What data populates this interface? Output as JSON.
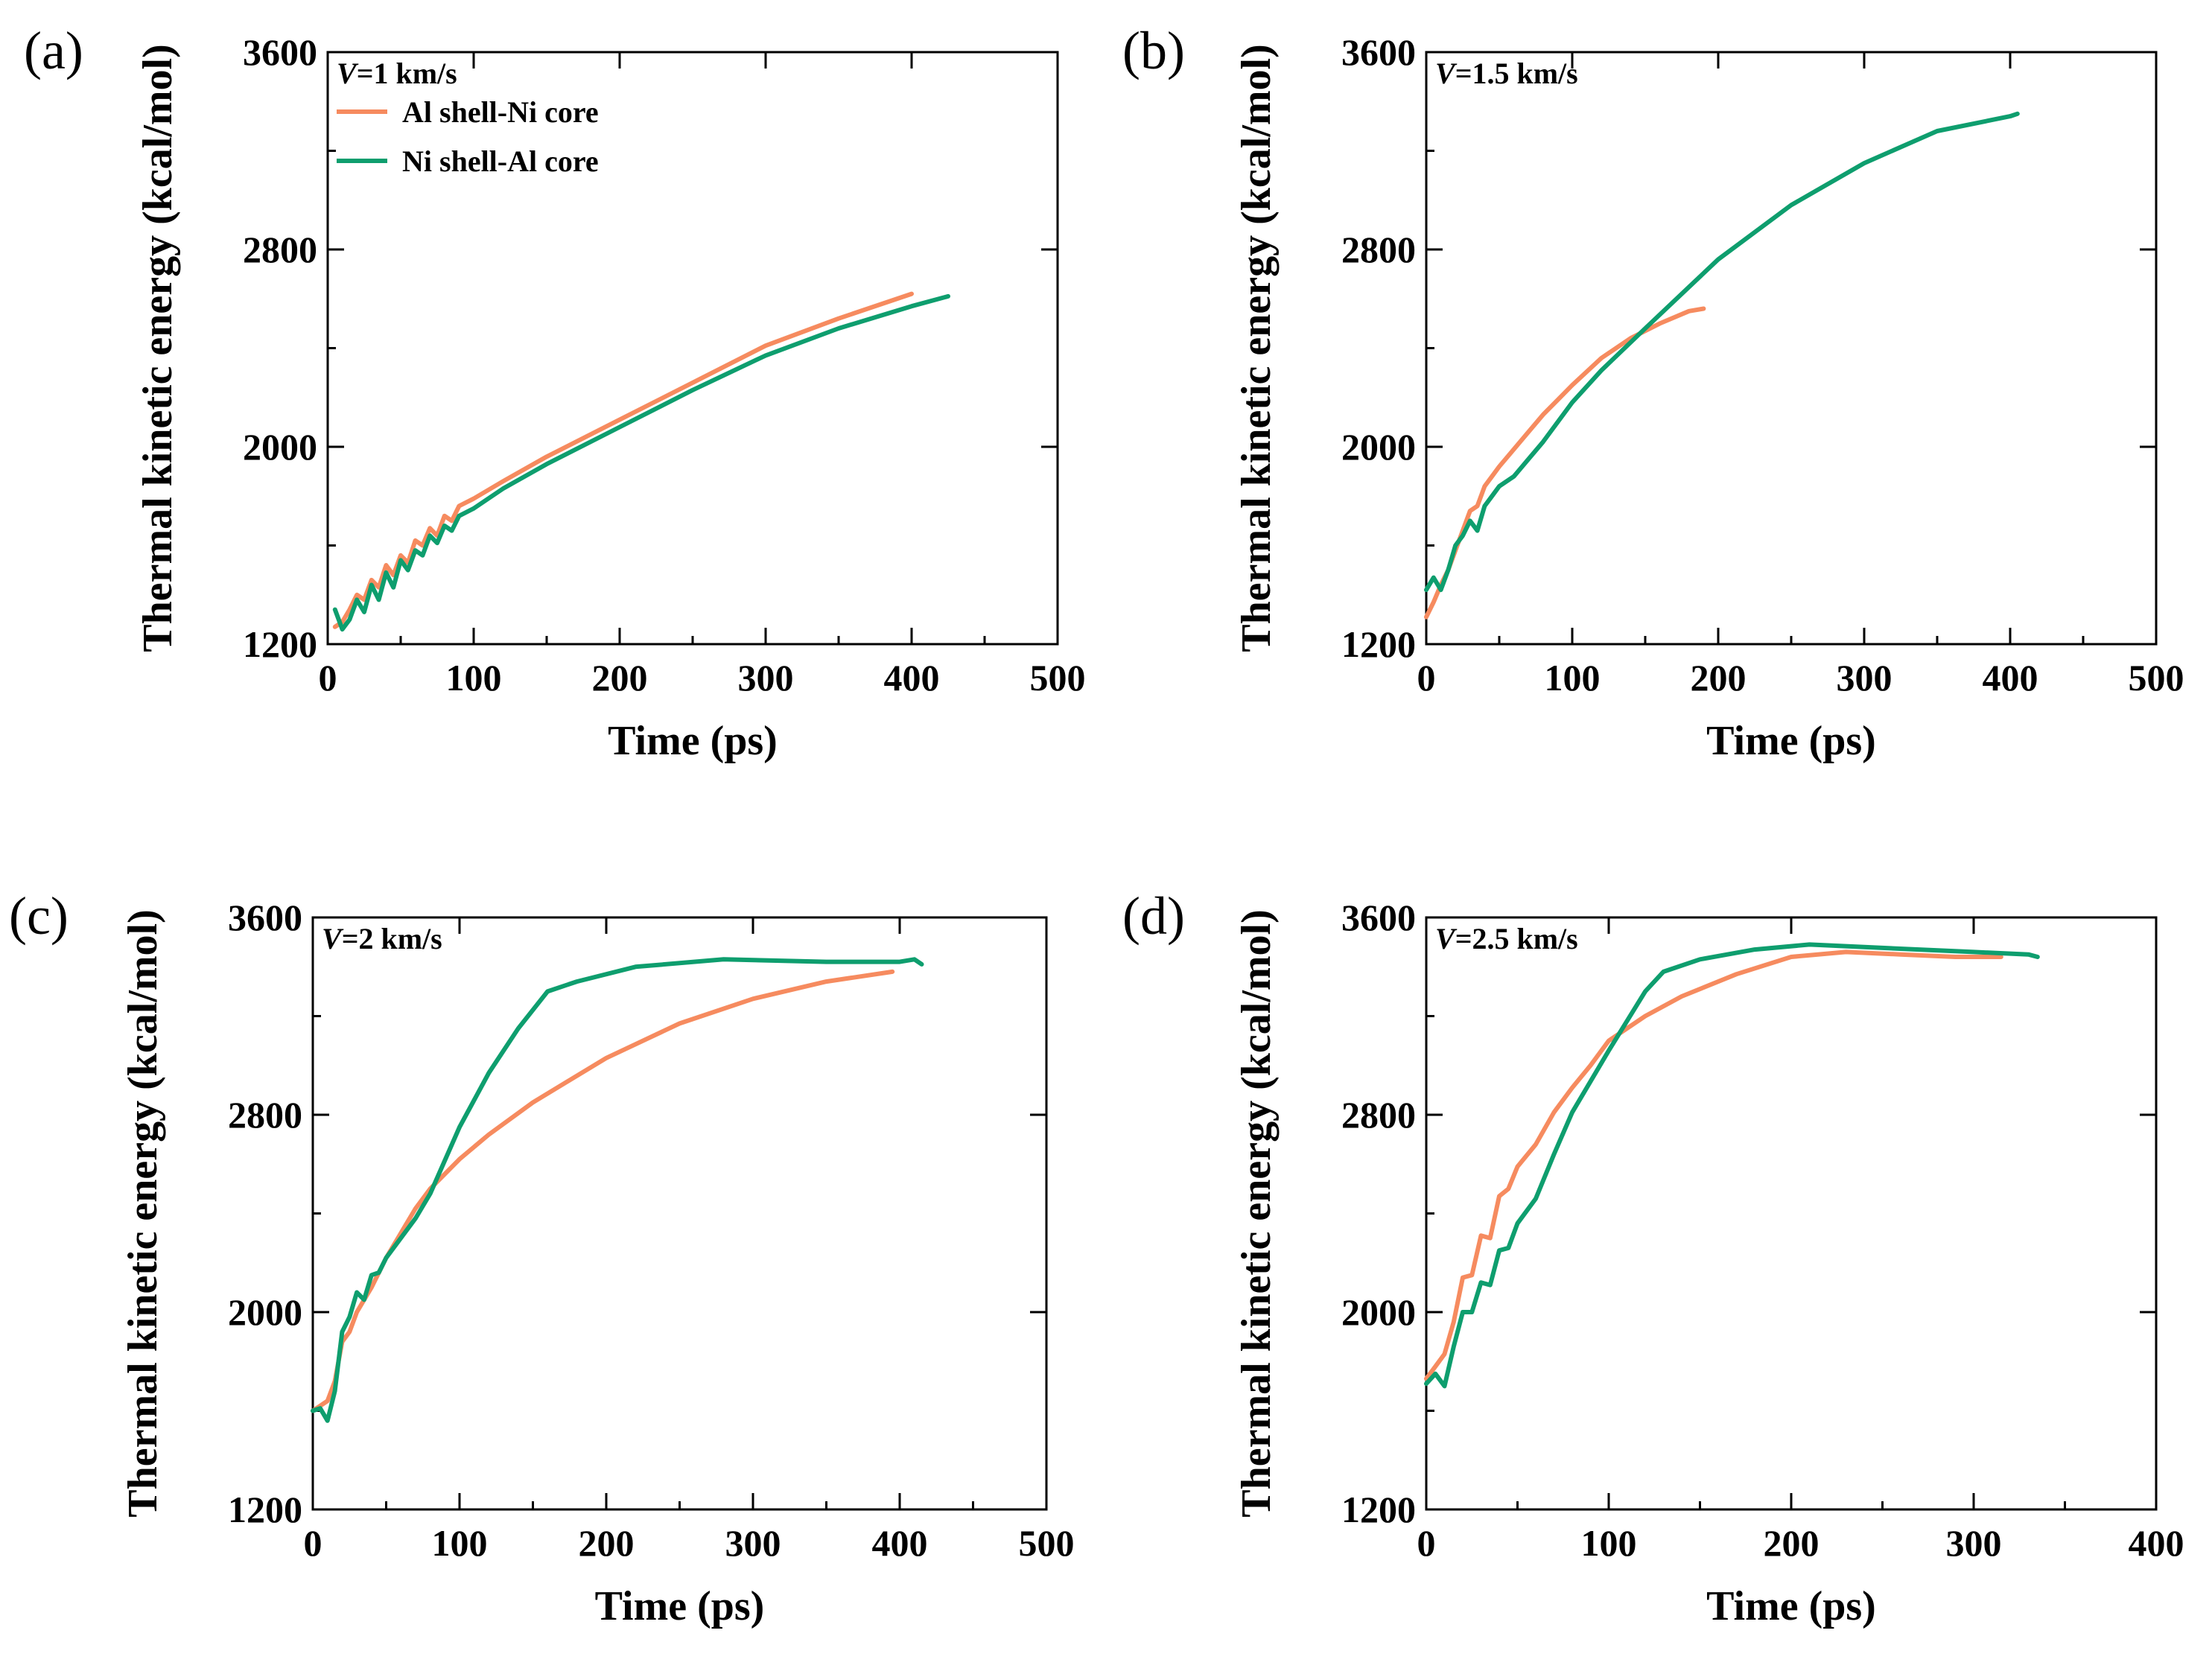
{
  "colors": {
    "al_shell": "#F68B5F",
    "ni_shell": "#0E9E6E"
  },
  "legend": [
    "Al shell-Ni core",
    "Ni shell-Al core"
  ],
  "chart_data": [
    {
      "panel_label": "(a)",
      "type": "line",
      "annotation_italic": "V",
      "annotation_rest": "=1 km/s",
      "xlabel": "Time (ps)",
      "ylabel": "Thermal kinetic energy (kcal/mol)",
      "xlim": [
        0,
        500
      ],
      "ylim": [
        1200,
        3600
      ],
      "xticks": [
        0,
        100,
        200,
        300,
        400,
        500
      ],
      "yticks": [
        1200,
        2000,
        2800,
        3600
      ],
      "show_legend": true,
      "series": [
        {
          "name": "Al shell-Ni core",
          "color_key": "al_shell",
          "x": [
            5,
            10,
            15,
            20,
            25,
            30,
            35,
            40,
            45,
            50,
            55,
            60,
            65,
            70,
            75,
            80,
            85,
            90,
            100,
            120,
            150,
            200,
            250,
            300,
            350,
            400
          ],
          "y": [
            1270,
            1290,
            1340,
            1400,
            1380,
            1460,
            1430,
            1520,
            1480,
            1560,
            1530,
            1620,
            1600,
            1670,
            1640,
            1720,
            1700,
            1760,
            1790,
            1860,
            1960,
            2110,
            2260,
            2410,
            2520,
            2620
          ]
        },
        {
          "name": "Ni shell-Al core",
          "color_key": "ni_shell",
          "x": [
            5,
            10,
            15,
            20,
            25,
            30,
            35,
            40,
            45,
            50,
            55,
            60,
            65,
            70,
            75,
            80,
            85,
            90,
            100,
            120,
            150,
            200,
            250,
            300,
            350,
            400,
            425
          ],
          "y": [
            1340,
            1260,
            1300,
            1380,
            1330,
            1440,
            1380,
            1490,
            1430,
            1540,
            1500,
            1580,
            1560,
            1640,
            1610,
            1680,
            1660,
            1720,
            1750,
            1830,
            1930,
            2080,
            2230,
            2370,
            2480,
            2570,
            2610
          ]
        }
      ]
    },
    {
      "panel_label": "(b)",
      "type": "line",
      "annotation_italic": "V",
      "annotation_rest": "=1.5 km/s",
      "xlabel": "Time (ps)",
      "ylabel": "Thermal kinetic energy (kcal/mol)",
      "xlim": [
        0,
        500
      ],
      "ylim": [
        1200,
        3600
      ],
      "xticks": [
        0,
        100,
        200,
        300,
        400,
        500
      ],
      "yticks": [
        1200,
        2000,
        2800,
        3600
      ],
      "show_legend": false,
      "series": [
        {
          "name": "Al shell-Ni core",
          "color_key": "al_shell",
          "x": [
            0,
            5,
            10,
            15,
            20,
            25,
            30,
            35,
            40,
            45,
            50,
            60,
            70,
            80,
            90,
            100,
            120,
            140,
            160,
            180,
            190
          ],
          "y": [
            1310,
            1370,
            1440,
            1500,
            1580,
            1660,
            1740,
            1760,
            1840,
            1880,
            1920,
            1990,
            2060,
            2130,
            2190,
            2250,
            2360,
            2440,
            2500,
            2550,
            2560
          ]
        },
        {
          "name": "Ni shell-Al core",
          "color_key": "ni_shell",
          "x": [
            0,
            5,
            10,
            15,
            20,
            25,
            30,
            35,
            40,
            45,
            50,
            60,
            70,
            80,
            90,
            100,
            120,
            150,
            200,
            250,
            300,
            350,
            400,
            405
          ],
          "y": [
            1420,
            1470,
            1420,
            1500,
            1600,
            1640,
            1700,
            1660,
            1760,
            1800,
            1840,
            1880,
            1950,
            2020,
            2100,
            2180,
            2310,
            2480,
            2760,
            2980,
            3150,
            3280,
            3340,
            3350
          ]
        }
      ]
    },
    {
      "panel_label": "(c)",
      "type": "line",
      "annotation_italic": "V",
      "annotation_rest": "=2 km/s",
      "xlabel": "Time (ps)",
      "ylabel": "Thermal kinetic energy (kcal/mol)",
      "xlim": [
        0,
        500
      ],
      "ylim": [
        1200,
        3600
      ],
      "xticks": [
        0,
        100,
        200,
        300,
        400,
        500
      ],
      "yticks": [
        1200,
        2000,
        2800,
        3600
      ],
      "show_legend": false,
      "series": [
        {
          "name": "Al shell-Ni core",
          "color_key": "al_shell",
          "x": [
            0,
            5,
            10,
            15,
            20,
            25,
            30,
            40,
            50,
            60,
            70,
            80,
            100,
            120,
            150,
            200,
            250,
            300,
            350,
            395
          ],
          "y": [
            1600,
            1620,
            1640,
            1720,
            1880,
            1920,
            2000,
            2100,
            2220,
            2320,
            2420,
            2500,
            2620,
            2720,
            2850,
            3030,
            3170,
            3270,
            3340,
            3380
          ]
        },
        {
          "name": "Ni shell-Al core",
          "color_key": "ni_shell",
          "x": [
            0,
            5,
            10,
            15,
            20,
            25,
            30,
            35,
            40,
            45,
            50,
            60,
            70,
            80,
            100,
            120,
            140,
            160,
            180,
            220,
            280,
            350,
            400,
            410,
            415
          ],
          "y": [
            1600,
            1610,
            1560,
            1680,
            1920,
            1980,
            2080,
            2050,
            2150,
            2160,
            2220,
            2300,
            2380,
            2480,
            2750,
            2970,
            3150,
            3300,
            3340,
            3400,
            3430,
            3420,
            3420,
            3430,
            3410
          ]
        }
      ]
    },
    {
      "panel_label": "(d)",
      "type": "line",
      "annotation_italic": "V",
      "annotation_rest": "=2.5 km/s",
      "xlabel": "Time (ps)",
      "ylabel": "Thermal kinetic energy (kcal/mol)",
      "xlim": [
        0,
        400
      ],
      "ylim": [
        1200,
        3600
      ],
      "xticks": [
        0,
        100,
        200,
        300,
        400
      ],
      "yticks": [
        1200,
        2000,
        2800,
        3600
      ],
      "show_legend": false,
      "series": [
        {
          "name": "Al shell-Ni core",
          "color_key": "al_shell",
          "x": [
            0,
            5,
            10,
            15,
            20,
            25,
            30,
            35,
            40,
            45,
            50,
            60,
            70,
            80,
            90,
            100,
            120,
            140,
            170,
            200,
            230,
            260,
            290,
            315
          ],
          "y": [
            1730,
            1780,
            1830,
            1960,
            2140,
            2150,
            2310,
            2300,
            2470,
            2500,
            2590,
            2680,
            2810,
            2910,
            3000,
            3100,
            3200,
            3280,
            3370,
            3440,
            3460,
            3450,
            3440,
            3440
          ]
        },
        {
          "name": "Ni shell-Al core",
          "color_key": "ni_shell",
          "x": [
            0,
            5,
            10,
            15,
            20,
            25,
            30,
            35,
            40,
            45,
            50,
            60,
            70,
            80,
            100,
            120,
            130,
            150,
            180,
            210,
            240,
            270,
            300,
            330,
            335
          ],
          "y": [
            1710,
            1750,
            1700,
            1860,
            2000,
            2000,
            2120,
            2110,
            2250,
            2260,
            2360,
            2460,
            2640,
            2810,
            3060,
            3300,
            3380,
            3430,
            3470,
            3490,
            3480,
            3470,
            3460,
            3450,
            3440
          ]
        }
      ]
    }
  ]
}
